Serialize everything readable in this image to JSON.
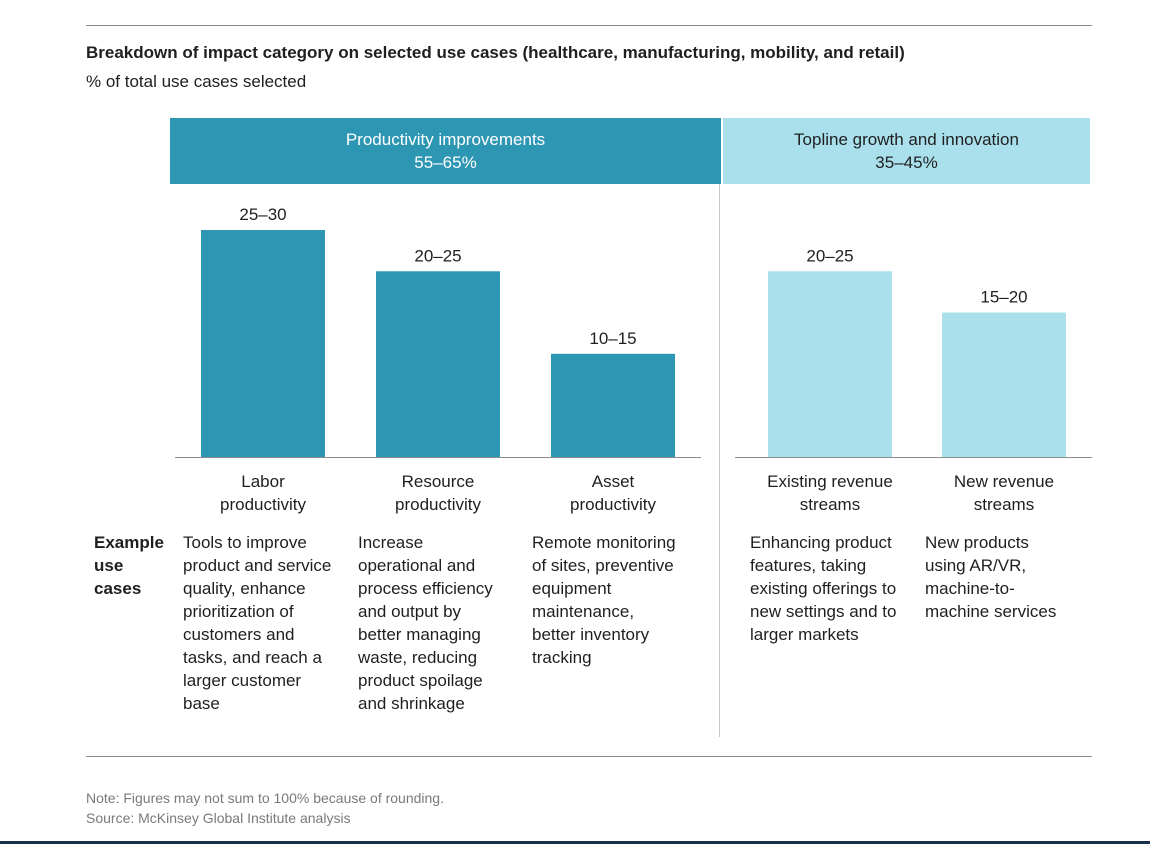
{
  "chart_data": {
    "type": "bar",
    "title": "Breakdown of impact category on selected use cases (healthcare, manufacturing, mobility, and retail)",
    "subtitle": "% of total use cases selected",
    "groups": [
      {
        "name": "Productivity improvements",
        "range": "55–65%",
        "color": "#2d96b3"
      },
      {
        "name": "Topline growth and innovation",
        "range": "35–45%",
        "color": "#a9e0ec"
      }
    ],
    "categories": [
      "Labor productivity",
      "Resource productivity",
      "Asset productivity",
      "Existing revenue streams",
      "New revenue streams"
    ],
    "category_lines": [
      [
        "Labor",
        "productivity"
      ],
      [
        "Resource",
        "productivity"
      ],
      [
        "Asset",
        "productivity"
      ],
      [
        "Existing revenue",
        "streams"
      ],
      [
        "New revenue",
        "streams"
      ]
    ],
    "range_labels": [
      "25–30",
      "20–25",
      "10–15",
      "20–25",
      "15–20"
    ],
    "values": [
      [
        25,
        30
      ],
      [
        20,
        25
      ],
      [
        10,
        15
      ],
      [
        20,
        25
      ],
      [
        15,
        20
      ]
    ],
    "category_group": [
      0,
      0,
      0,
      1,
      1
    ],
    "example_label": [
      "Example",
      "use",
      "cases"
    ],
    "examples": [
      [
        "Tools to improve",
        "product and service",
        "quality, enhance",
        "prioritization of",
        "customers and",
        "tasks, and reach a",
        "larger customer",
        "base"
      ],
      [
        "Increase",
        "operational and",
        "process efficiency",
        "and output by",
        "better managing",
        "waste, reducing",
        "product spoilage",
        "and shrinkage"
      ],
      [
        "Remote monitoring",
        "of sites, preventive",
        "equipment",
        "maintenance,",
        "better inventory",
        "tracking"
      ],
      [
        "Enhancing product",
        "features, taking",
        "existing offerings to",
        "new settings and to",
        "larger markets"
      ],
      [
        "New products",
        "using AR/VR,",
        "machine-to-",
        "machine services"
      ]
    ],
    "ylim": [
      0,
      30
    ],
    "grid": false,
    "legend": "none"
  },
  "notes": {
    "note": "Note: Figures may not sum to 100% because of rounding.",
    "source": "Source: McKinsey Global Institute analysis"
  }
}
